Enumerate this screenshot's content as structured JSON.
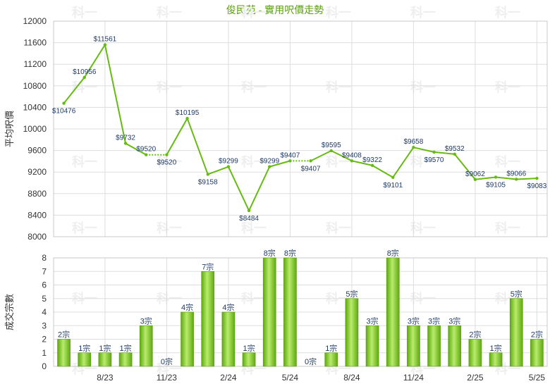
{
  "chart_data": [
    {
      "type": "line",
      "title": "俊民苑 - 實用呎價走勢",
      "ylabel": "平均呎價",
      "ylim": [
        8000,
        12000
      ],
      "yticks": [
        8000,
        8400,
        8800,
        9200,
        9600,
        10000,
        10400,
        10800,
        11200,
        11600,
        12000
      ],
      "xticks": [
        "8/23",
        "11/23",
        "2/24",
        "5/24",
        "8/24",
        "11/24",
        "2/25",
        "5/25"
      ],
      "series": [
        {
          "values": [
            10476,
            10956,
            11561,
            9732,
            9520,
            9520,
            10195,
            9158,
            9299,
            8484,
            9299,
            9407,
            9407,
            9595,
            9408,
            9322,
            9101,
            9658,
            9570,
            9532,
            9062,
            9105,
            9066,
            9083
          ],
          "labels": [
            "$10476",
            "$10956",
            "$11561",
            "$9732",
            "$9520",
            "$9520",
            "$10195",
            "$9158",
            "$9299",
            "$8484",
            "$9299",
            "$9407",
            "$9407",
            "$9595",
            "$9408",
            "$9322",
            "$9101",
            "$9658",
            "$9570",
            "$9532",
            "$9062",
            "$9105",
            "$9066",
            "$9083"
          ]
        }
      ],
      "line_color": "#66bb11"
    },
    {
      "type": "bar",
      "ylabel": "成交宗數",
      "ylim": [
        0,
        8
      ],
      "yticks": [
        0,
        1,
        2,
        3,
        4,
        5,
        6,
        7,
        8
      ],
      "xticks": [
        "8/23",
        "11/23",
        "2/24",
        "5/24",
        "8/24",
        "11/24",
        "2/25",
        "5/25"
      ],
      "values": [
        2,
        1,
        1,
        1,
        3,
        0,
        4,
        7,
        4,
        1,
        8,
        8,
        0,
        1,
        5,
        3,
        8,
        3,
        3,
        3,
        2,
        1,
        5,
        2
      ],
      "labels": [
        "2宗",
        "1宗",
        "1宗",
        "1宗",
        "3宗",
        "0宗",
        "4宗",
        "7宗",
        "4宗",
        "1宗",
        "8宗",
        "8宗",
        "0宗",
        "1宗",
        "5宗",
        "3宗",
        "8宗",
        "3宗",
        "3宗",
        "3宗",
        "2宗",
        "1宗",
        "5宗",
        "2宗"
      ],
      "bar_color": "#7cc520"
    }
  ],
  "watermark": "科一"
}
